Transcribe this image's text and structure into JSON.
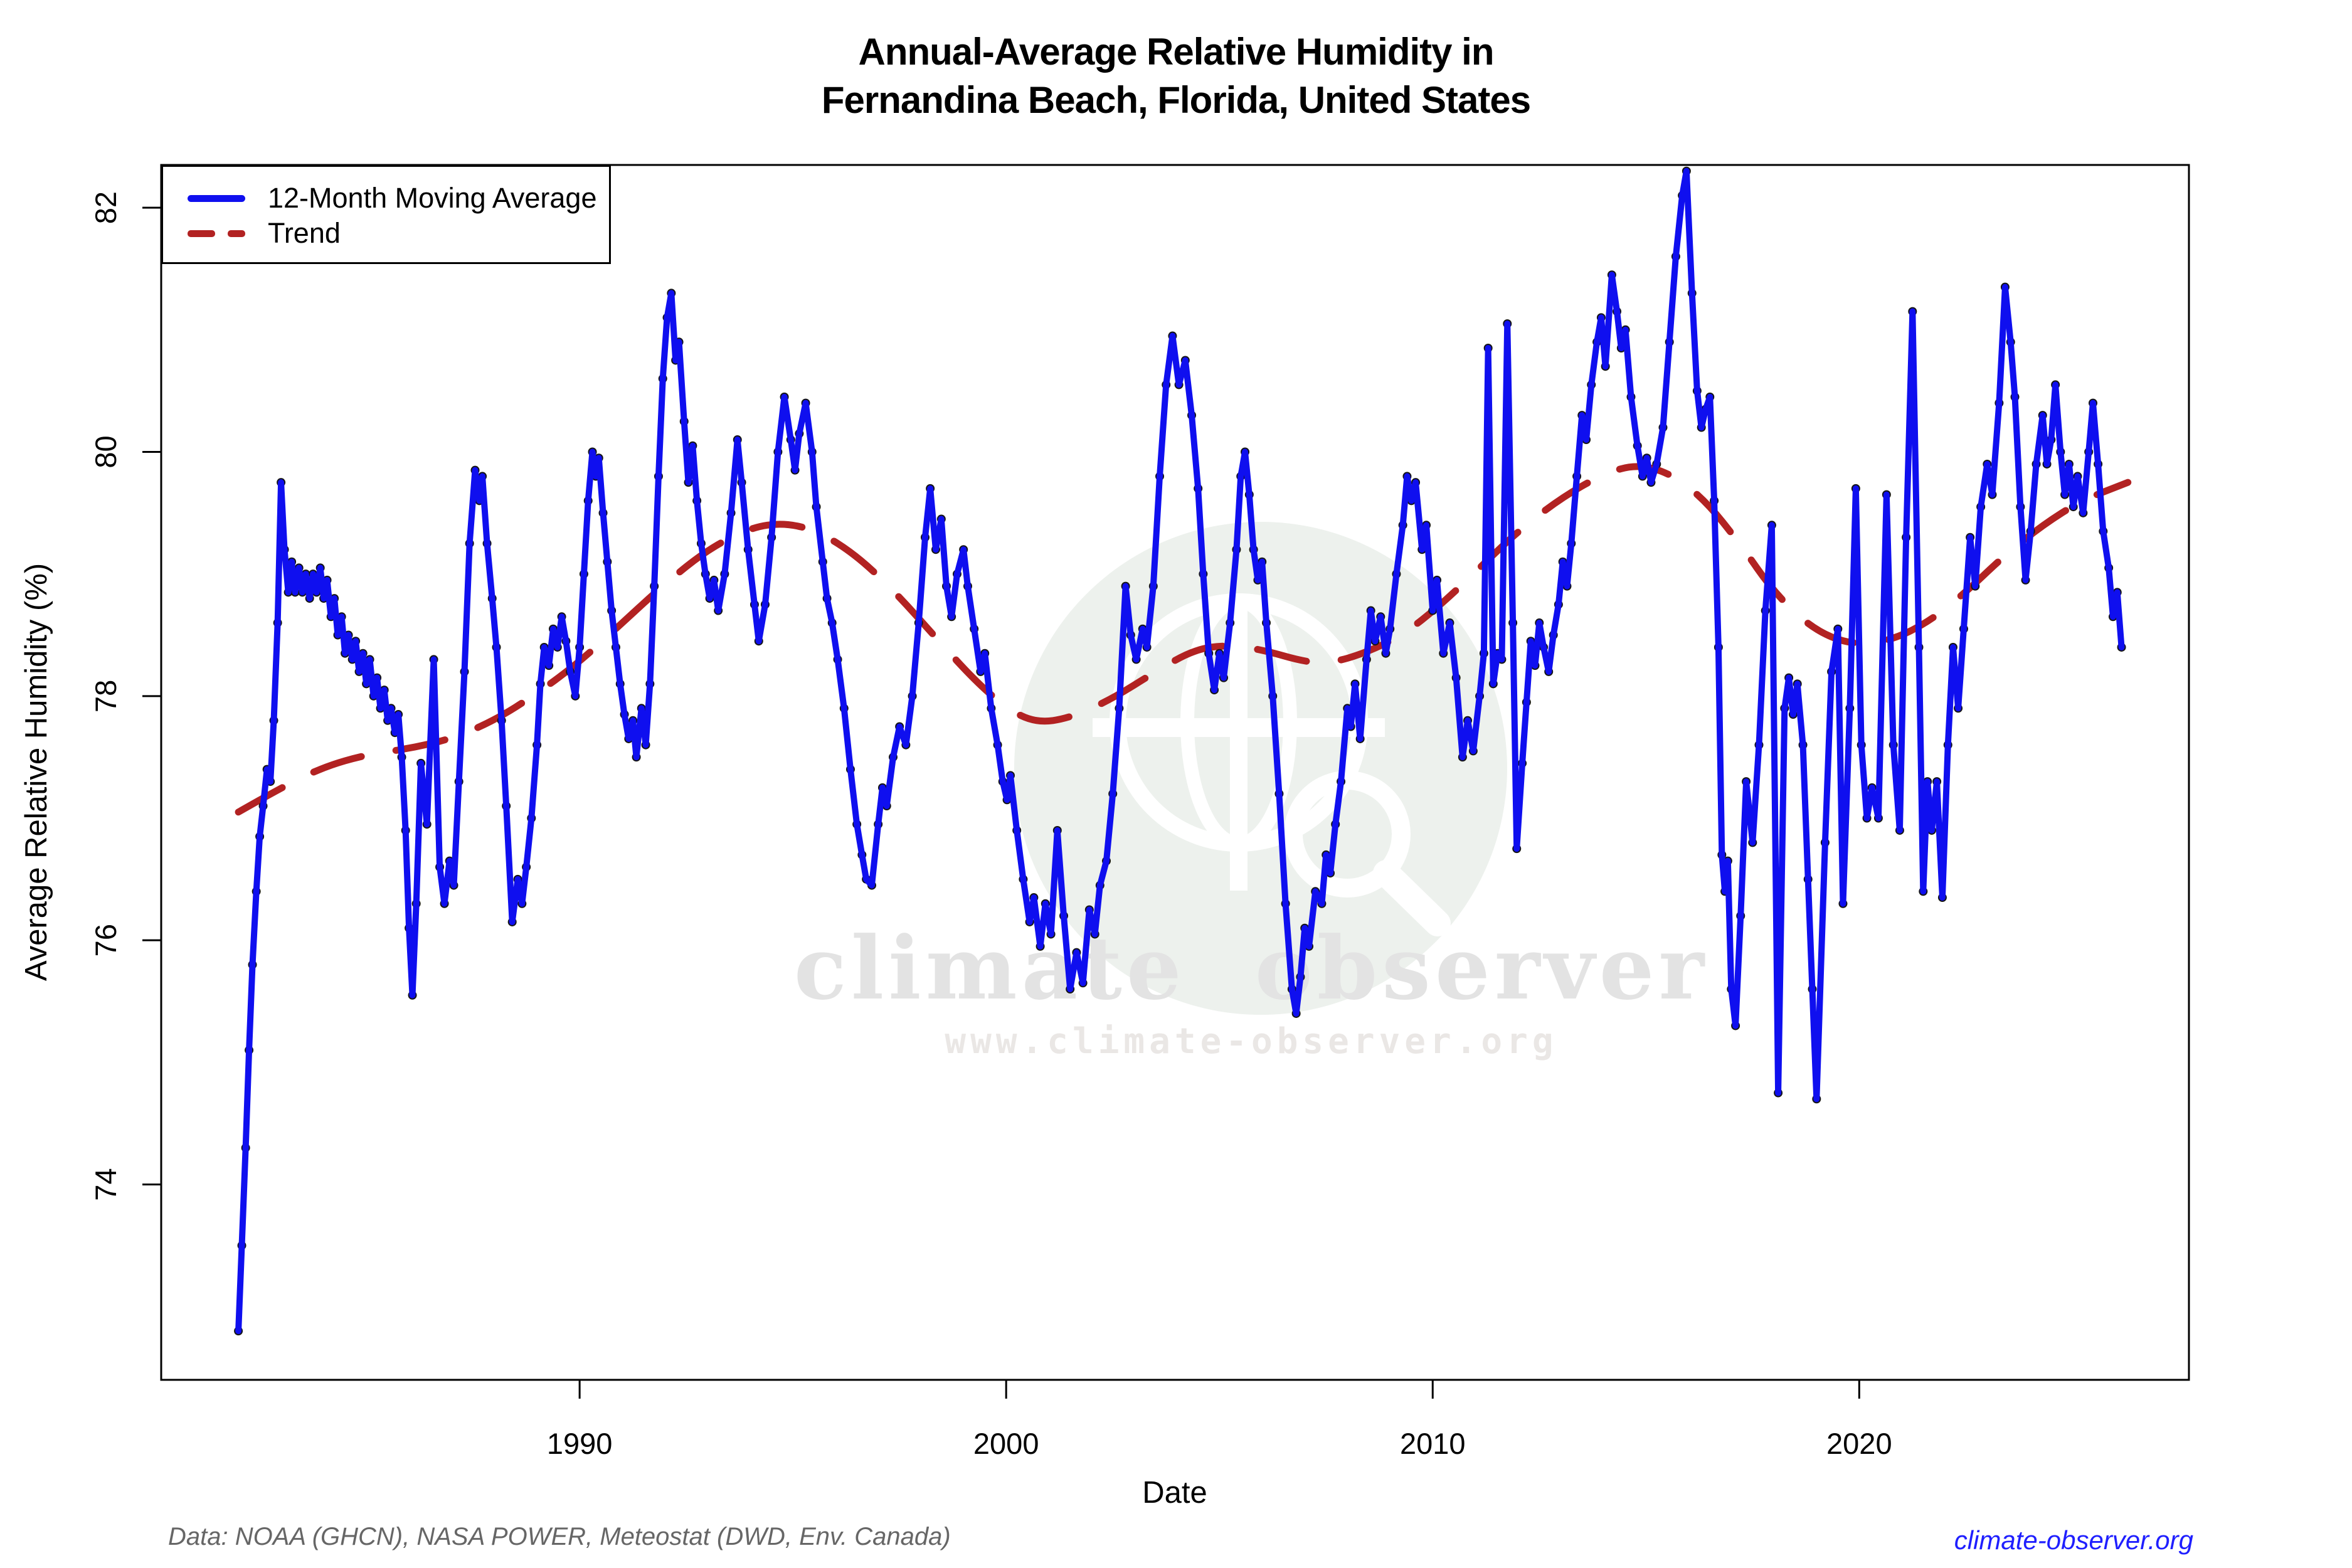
{
  "title": {
    "line1": "Annual-Average Relative Humidity in",
    "line2": "Fernandina Beach, Florida, United States"
  },
  "legend": {
    "items": [
      {
        "label": "12-Month Moving Average",
        "style": "solid",
        "color": "#0f0fef"
      },
      {
        "label": "Trend",
        "style": "dashed",
        "color": "#b22222"
      }
    ]
  },
  "watermark": {
    "text": "climate observer",
    "url": "www.climate-observer.org"
  },
  "footer": {
    "source": "Data: NOAA (GHCN), NASA POWER, Meteostat (DWD, Env. Canada)",
    "site": "climate-observer.org"
  },
  "colors": {
    "ma_line": "#0f0fef",
    "trend_line": "#b22222",
    "point_dot": "#151515",
    "axis": "#000000",
    "watermark_circle": "#edf1ed",
    "watermark_text": "#e3e3e3",
    "footer_gray": "#666666",
    "footer_link": "#1f1fff"
  },
  "chart_data": {
    "type": "line",
    "title": "Annual-Average Relative Humidity in Fernandina Beach, Florida, United States",
    "xlabel": "Date",
    "ylabel": "Average Relative Humidity (%)",
    "xlim": [
      1980.19,
      2027.73
    ],
    "ylim": [
      72.4,
      82.35
    ],
    "xticks": [
      1990,
      2000,
      2010,
      2020
    ],
    "yticks": [
      74,
      76,
      78,
      80,
      82
    ],
    "grid": false,
    "legend_position": "top-left",
    "series": [
      {
        "name": "12-Month Moving Average",
        "style": "solid",
        "markers": true,
        "x": [
          1982.0,
          1982.08,
          1982.17,
          1982.25,
          1982.33,
          1982.42,
          1982.5,
          1982.58,
          1982.67,
          1982.75,
          1982.83,
          1982.92,
          1983.0,
          1983.08,
          1983.17,
          1983.25,
          1983.33,
          1983.42,
          1983.5,
          1983.58,
          1983.67,
          1983.75,
          1983.83,
          1983.92,
          1984.0,
          1984.08,
          1984.17,
          1984.25,
          1984.33,
          1984.42,
          1984.5,
          1984.58,
          1984.67,
          1984.75,
          1984.83,
          1984.92,
          1985.0,
          1985.08,
          1985.17,
          1985.25,
          1985.33,
          1985.42,
          1985.5,
          1985.58,
          1985.67,
          1985.75,
          1985.83,
          1985.92,
          1986.0,
          1986.08,
          1986.17,
          1986.28,
          1986.42,
          1986.58,
          1986.72,
          1986.83,
          1986.95,
          1987.05,
          1987.17,
          1987.3,
          1987.42,
          1987.55,
          1987.65,
          1987.72,
          1987.83,
          1987.95,
          1988.05,
          1988.17,
          1988.28,
          1988.42,
          1988.55,
          1988.65,
          1988.75,
          1988.87,
          1989.0,
          1989.08,
          1989.17,
          1989.28,
          1989.38,
          1989.48,
          1989.58,
          1989.68,
          1989.78,
          1989.9,
          1990.0,
          1990.1,
          1990.2,
          1990.3,
          1990.38,
          1990.45,
          1990.55,
          1990.65,
          1990.75,
          1990.85,
          1990.95,
          1991.05,
          1991.15,
          1991.25,
          1991.33,
          1991.45,
          1991.55,
          1991.65,
          1991.75,
          1991.85,
          1991.95,
          1992.05,
          1992.15,
          1992.25,
          1992.33,
          1992.45,
          1992.55,
          1992.65,
          1992.75,
          1992.85,
          1992.95,
          1993.05,
          1993.15,
          1993.25,
          1993.4,
          1993.55,
          1993.7,
          1993.8,
          1993.95,
          1994.1,
          1994.2,
          1994.35,
          1994.5,
          1994.65,
          1994.8,
          1994.95,
          1995.05,
          1995.15,
          1995.3,
          1995.45,
          1995.55,
          1995.7,
          1995.8,
          1995.92,
          1996.05,
          1996.2,
          1996.35,
          1996.5,
          1996.62,
          1996.72,
          1996.85,
          1997.0,
          1997.1,
          1997.2,
          1997.35,
          1997.5,
          1997.65,
          1997.8,
          1997.95,
          1998.1,
          1998.22,
          1998.35,
          1998.48,
          1998.6,
          1998.72,
          1998.85,
          1999.0,
          1999.1,
          1999.25,
          1999.4,
          1999.5,
          1999.65,
          1999.8,
          1999.92,
          2000.02,
          2000.1,
          2000.25,
          2000.4,
          2000.55,
          2000.65,
          2000.8,
          2000.92,
          2001.05,
          2001.2,
          2001.35,
          2001.5,
          2001.65,
          2001.8,
          2001.95,
          2002.08,
          2002.2,
          2002.35,
          2002.5,
          2002.65,
          2002.8,
          2002.92,
          2003.05,
          2003.2,
          2003.3,
          2003.45,
          2003.6,
          2003.75,
          2003.9,
          2004.05,
          2004.2,
          2004.35,
          2004.5,
          2004.62,
          2004.75,
          2004.88,
          2005.0,
          2005.1,
          2005.25,
          2005.4,
          2005.5,
          2005.6,
          2005.7,
          2005.8,
          2005.9,
          2006.0,
          2006.1,
          2006.25,
          2006.4,
          2006.55,
          2006.7,
          2006.8,
          2006.9,
          2007.0,
          2007.1,
          2007.25,
          2007.4,
          2007.5,
          2007.6,
          2007.72,
          2007.85,
          2008.0,
          2008.08,
          2008.18,
          2008.3,
          2008.45,
          2008.55,
          2008.65,
          2008.78,
          2008.9,
          2009.0,
          2009.15,
          2009.3,
          2009.4,
          2009.5,
          2009.6,
          2009.75,
          2009.85,
          2010.0,
          2010.1,
          2010.25,
          2010.4,
          2010.55,
          2010.7,
          2010.82,
          2010.95,
          2011.1,
          2011.2,
          2011.3,
          2011.42,
          2011.52,
          2011.62,
          2011.75,
          2011.88,
          2011.97,
          2012.1,
          2012.2,
          2012.3,
          2012.4,
          2012.5,
          2012.6,
          2012.72,
          2012.83,
          2012.95,
          2013.05,
          2013.15,
          2013.25,
          2013.38,
          2013.5,
          2013.6,
          2013.72,
          2013.85,
          2013.95,
          2014.05,
          2014.2,
          2014.32,
          2014.42,
          2014.52,
          2014.65,
          2014.8,
          2014.92,
          2015.02,
          2015.12,
          2015.25,
          2015.4,
          2015.55,
          2015.7,
          2015.85,
          2015.95,
          2016.08,
          2016.2,
          2016.3,
          2016.4,
          2016.5,
          2016.6,
          2016.7,
          2016.78,
          2016.85,
          2016.92,
          2017.0,
          2017.1,
          2017.22,
          2017.35,
          2017.5,
          2017.65,
          2017.8,
          2017.95,
          2018.1,
          2018.25,
          2018.35,
          2018.45,
          2018.55,
          2018.68,
          2018.8,
          2018.9,
          2019.0,
          2019.2,
          2019.35,
          2019.5,
          2019.62,
          2019.78,
          2019.92,
          2020.05,
          2020.18,
          2020.3,
          2020.45,
          2020.64,
          2020.8,
          2020.95,
          2021.1,
          2021.25,
          2021.4,
          2021.5,
          2021.6,
          2021.7,
          2021.82,
          2021.95,
          2022.08,
          2022.2,
          2022.32,
          2022.45,
          2022.6,
          2022.72,
          2022.85,
          2023.0,
          2023.12,
          2023.28,
          2023.42,
          2023.55,
          2023.65,
          2023.78,
          2023.9,
          2024.02,
          2024.15,
          2024.3,
          2024.4,
          2024.5,
          2024.6,
          2024.72,
          2024.82,
          2024.92,
          2025.02,
          2025.12,
          2025.25,
          2025.38,
          2025.48,
          2025.6,
          2025.72,
          2025.85,
          2025.95,
          2026.05,
          2026.15
        ],
        "y": [
          72.8,
          73.5,
          74.3,
          75.1,
          75.8,
          76.4,
          76.85,
          77.1,
          77.4,
          77.3,
          77.8,
          78.6,
          79.75,
          79.2,
          78.85,
          79.1,
          78.85,
          79.05,
          78.85,
          79.0,
          78.8,
          79.0,
          78.85,
          79.05,
          78.8,
          78.95,
          78.65,
          78.8,
          78.5,
          78.65,
          78.35,
          78.5,
          78.3,
          78.45,
          78.2,
          78.35,
          78.1,
          78.3,
          78.0,
          78.15,
          77.9,
          78.05,
          77.8,
          77.9,
          77.7,
          77.85,
          77.5,
          76.9,
          76.1,
          75.55,
          76.3,
          77.45,
          76.95,
          78.3,
          76.6,
          76.3,
          76.65,
          76.45,
          77.3,
          78.2,
          79.25,
          79.85,
          79.6,
          79.8,
          79.25,
          78.8,
          78.4,
          77.8,
          77.1,
          76.15,
          76.5,
          76.3,
          76.6,
          77.0,
          77.6,
          78.1,
          78.4,
          78.25,
          78.55,
          78.4,
          78.65,
          78.45,
          78.2,
          78.0,
          78.4,
          79.0,
          79.6,
          80.0,
          79.8,
          79.95,
          79.5,
          79.1,
          78.7,
          78.4,
          78.1,
          77.85,
          77.65,
          77.8,
          77.5,
          77.9,
          77.6,
          78.1,
          78.9,
          79.8,
          80.6,
          81.1,
          81.3,
          80.75,
          80.9,
          80.25,
          79.75,
          80.05,
          79.6,
          79.25,
          79.0,
          78.8,
          78.95,
          78.7,
          79.0,
          79.5,
          80.1,
          79.75,
          79.2,
          78.75,
          78.45,
          78.75,
          79.3,
          80.0,
          80.45,
          80.1,
          79.85,
          80.15,
          80.4,
          80.0,
          79.55,
          79.1,
          78.8,
          78.6,
          78.3,
          77.9,
          77.4,
          76.95,
          76.7,
          76.5,
          76.45,
          76.95,
          77.25,
          77.1,
          77.5,
          77.75,
          77.6,
          78.0,
          78.6,
          79.3,
          79.7,
          79.2,
          79.45,
          78.9,
          78.65,
          79.0,
          79.2,
          78.9,
          78.55,
          78.2,
          78.35,
          77.9,
          77.6,
          77.3,
          77.15,
          77.35,
          76.9,
          76.5,
          76.15,
          76.35,
          75.95,
          76.3,
          76.05,
          76.9,
          76.2,
          75.6,
          75.9,
          75.65,
          76.25,
          76.05,
          76.45,
          76.65,
          77.2,
          77.9,
          78.9,
          78.5,
          78.3,
          78.55,
          78.4,
          78.9,
          79.8,
          80.55,
          80.95,
          80.55,
          80.75,
          80.3,
          79.7,
          79.0,
          78.35,
          78.05,
          78.35,
          78.15,
          78.6,
          79.2,
          79.8,
          80.0,
          79.65,
          79.2,
          78.95,
          79.1,
          78.6,
          78.0,
          77.2,
          76.3,
          75.6,
          75.4,
          75.7,
          76.1,
          75.95,
          76.4,
          76.3,
          76.7,
          76.55,
          76.95,
          77.3,
          77.9,
          77.75,
          78.1,
          77.65,
          78.3,
          78.7,
          78.45,
          78.65,
          78.35,
          78.55,
          79.0,
          79.4,
          79.8,
          79.6,
          79.75,
          79.2,
          79.4,
          78.7,
          78.95,
          78.35,
          78.6,
          78.15,
          77.5,
          77.8,
          77.55,
          78.0,
          78.35,
          80.85,
          78.1,
          78.35,
          78.3,
          81.05,
          78.6,
          76.75,
          77.45,
          77.95,
          78.45,
          78.25,
          78.6,
          78.4,
          78.2,
          78.5,
          78.75,
          79.1,
          78.9,
          79.25,
          79.8,
          80.3,
          80.1,
          80.55,
          80.9,
          81.1,
          80.7,
          81.45,
          81.15,
          80.85,
          81.0,
          80.45,
          80.05,
          79.8,
          79.95,
          79.75,
          79.9,
          80.2,
          80.9,
          81.6,
          82.1,
          82.3,
          81.3,
          80.5,
          80.2,
          80.35,
          80.45,
          79.6,
          78.4,
          76.7,
          76.4,
          76.65,
          75.6,
          75.3,
          76.2,
          77.3,
          76.8,
          77.6,
          78.7,
          79.4,
          74.75,
          77.9,
          78.15,
          77.85,
          78.1,
          77.6,
          76.5,
          75.6,
          74.7,
          76.8,
          78.2,
          78.55,
          76.3,
          77.9,
          79.7,
          77.6,
          77.0,
          77.25,
          77.0,
          79.65,
          77.6,
          76.9,
          79.3,
          81.15,
          78.4,
          76.4,
          77.3,
          76.9,
          77.3,
          76.35,
          77.6,
          78.4,
          77.9,
          78.55,
          79.3,
          78.9,
          79.55,
          79.9,
          79.65,
          80.4,
          81.35,
          80.9,
          80.45,
          79.55,
          78.95,
          79.35,
          79.9,
          80.3,
          79.9,
          80.1,
          80.55,
          80.0,
          79.65,
          79.9,
          79.55,
          79.8,
          79.5,
          80.0,
          80.4,
          79.9,
          79.35,
          79.05,
          78.65,
          78.85,
          78.4
        ]
      },
      {
        "name": "Trend",
        "style": "dashed",
        "markers": false,
        "x": [
          1982.0,
          1983,
          1984,
          1985,
          1986,
          1987,
          1988,
          1989,
          1990,
          1991,
          1992,
          1993,
          1994,
          1994.8,
          1995.6,
          1996.5,
          1997.4,
          1998.3,
          1999.2,
          2000.0,
          2000.7,
          2001.5,
          2002.5,
          2003.5,
          2004.4,
          2005.2,
          2006.0,
          2007.0,
          2007.6,
          2008.4,
          2009.3,
          2010.2,
          2011.1,
          2012.0,
          2013.0,
          2014.0,
          2014.8,
          2015.6,
          2016.4,
          2017.2,
          2018.0,
          2018.9,
          2019.8,
          2020.7,
          2021.6,
          2022.5,
          2023.4,
          2024.3,
          2025.2,
          2026.3
        ],
        "y": [
          77.05,
          77.25,
          77.42,
          77.52,
          77.57,
          77.65,
          77.8,
          78.02,
          78.28,
          78.6,
          78.92,
          79.2,
          79.38,
          79.42,
          79.35,
          79.15,
          78.85,
          78.5,
          78.15,
          77.9,
          77.78,
          77.82,
          77.98,
          78.2,
          78.38,
          78.42,
          78.38,
          78.28,
          78.27,
          78.35,
          78.5,
          78.75,
          79.05,
          79.35,
          79.62,
          79.82,
          79.9,
          79.82,
          79.6,
          79.25,
          78.85,
          78.55,
          78.42,
          78.45,
          78.6,
          78.85,
          79.15,
          79.4,
          79.6,
          79.75
        ]
      }
    ]
  }
}
